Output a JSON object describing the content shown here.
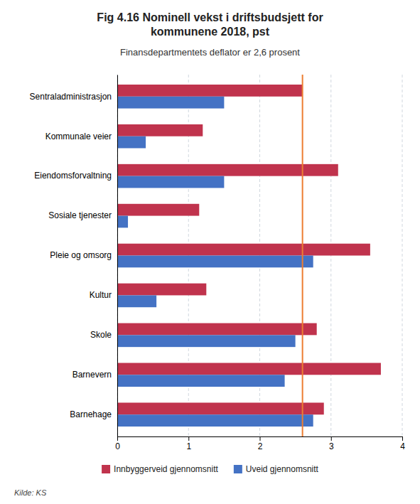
{
  "chart_data": {
    "type": "bar",
    "orientation": "horizontal",
    "title": "Fig 4.16 Nominell vekst i driftsbudsjett for\nkommunene 2018, pst",
    "subtitle": "Finansdepartmentets deflator er 2,6 prosent",
    "source": "Kilde: KS",
    "categories": [
      "Sentraladministrasjon",
      "Kommunale veier",
      "Eiendomsforvaltning",
      "Sosiale tjenester",
      "Pleie og omsorg",
      "Kultur",
      "Skole",
      "Barnevern",
      "Barnehage"
    ],
    "series": [
      {
        "name": "Innbyggerveid gjennomsnitt",
        "color": "#C0334D",
        "values": [
          2.6,
          1.2,
          3.1,
          1.15,
          3.55,
          1.25,
          2.8,
          3.7,
          2.9
        ]
      },
      {
        "name": "Uveid gjennomsnitt",
        "color": "#4472C4",
        "values": [
          1.5,
          0.4,
          1.5,
          0.15,
          2.75,
          0.55,
          2.5,
          2.35,
          2.75
        ]
      }
    ],
    "reference_line": {
      "value": 2.6,
      "color": "#ED7D31"
    },
    "xlim": [
      0,
      4
    ],
    "xticks": [
      0,
      1,
      2,
      3,
      4
    ],
    "grid": true,
    "legend": "bottom"
  }
}
